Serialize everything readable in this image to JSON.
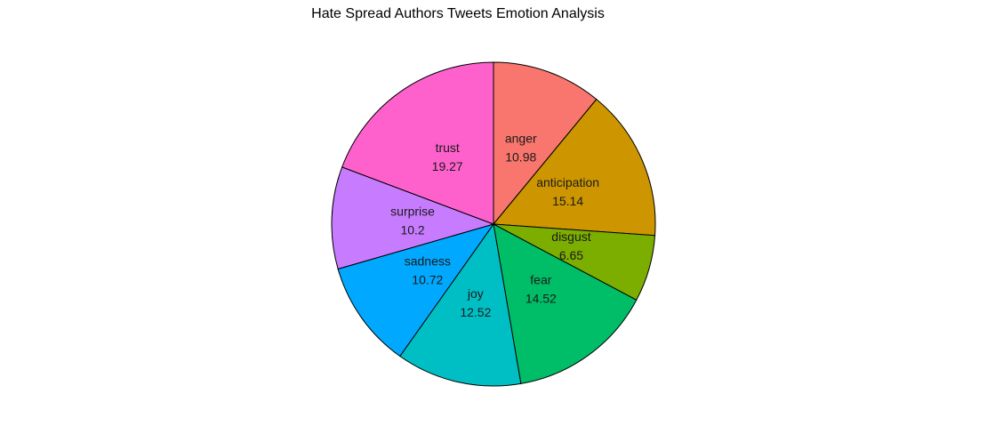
{
  "chart_data": {
    "type": "pie",
    "title": "Hate Spread Authors Tweets Emotion Analysis",
    "start_angle_deg": 90,
    "direction": "clockwise",
    "slices": [
      {
        "label": "anger",
        "value": 10.98,
        "value_text": "10.98",
        "color": "#F8766D"
      },
      {
        "label": "anticipation",
        "value": 15.14,
        "value_text": "15.14",
        "color": "#CD9600"
      },
      {
        "label": "disgust",
        "value": 6.65,
        "value_text": "6.65",
        "color": "#7CAE00"
      },
      {
        "label": "fear",
        "value": 14.52,
        "value_text": "14.52",
        "color": "#00BE67"
      },
      {
        "label": "joy",
        "value": 12.52,
        "value_text": "12.52",
        "color": "#00BFC4"
      },
      {
        "label": "sadness",
        "value": 10.72,
        "value_text": "10.72",
        "color": "#00A9FF"
      },
      {
        "label": "surprise",
        "value": 10.2,
        "value_text": "10.2",
        "color": "#C77CFF"
      },
      {
        "label": "trust",
        "value": 19.27,
        "value_text": "19.27",
        "color": "#FF61CC"
      }
    ]
  }
}
